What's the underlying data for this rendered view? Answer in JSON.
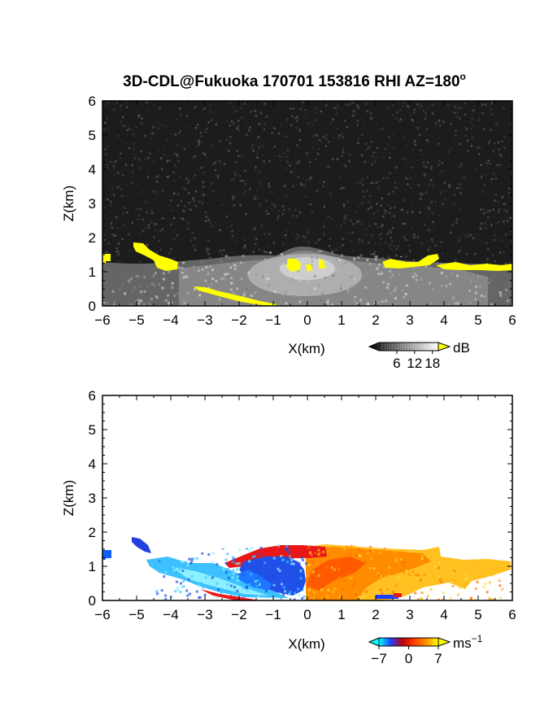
{
  "title": "3D-CDL@Fukuoka 170701 153816 RHI AZ=180",
  "title_degree": "o",
  "chart_data": [
    {
      "type": "heatmap",
      "variable": "reflectivity",
      "xlabel": "X(km)",
      "ylabel": "Z(km)",
      "xlim": [
        -6,
        6
      ],
      "ylim": [
        0,
        6
      ],
      "xticks": [
        "-6",
        "-5",
        "-4",
        "-3",
        "-2",
        "-1",
        "0",
        "1",
        "2",
        "3",
        "4",
        "5",
        "6"
      ],
      "yticks": [
        "0",
        "1",
        "2",
        "3",
        "4",
        "5",
        "6"
      ],
      "grid": false,
      "background_color": "#1c1c1c",
      "colorbar": {
        "unit": "dB",
        "ticks": [
          "6",
          "12",
          "18"
        ],
        "range": [
          0,
          20
        ],
        "colors": [
          "#000000",
          "#ffffff",
          "#ffff00"
        ]
      },
      "features": [
        {
          "kind": "boundary-layer echo (grey)",
          "x": [
            -4.5,
            6
          ],
          "z_top": [
            0.9,
            1.6
          ],
          "peak_db": 14
        },
        {
          "kind": "strong echo (yellow) left arc",
          "x": [
            -5.3,
            -3.9
          ],
          "z": [
            0.9,
            1.8
          ],
          "db": 18
        },
        {
          "kind": "strong echo (yellow) near surface",
          "x": [
            -3.3,
            -0.7
          ],
          "z": [
            0,
            0.6
          ],
          "db": 18
        },
        {
          "kind": "strong echo (yellow) center",
          "x": [
            -0.6,
            0.6
          ],
          "z": [
            1.1,
            1.4
          ],
          "db": 18
        },
        {
          "kind": "strong echo (yellow) right layer",
          "x": [
            2.2,
            6
          ],
          "z": [
            1.1,
            1.5
          ],
          "db": 18
        }
      ]
    },
    {
      "type": "heatmap",
      "variable": "doppler velocity",
      "xlabel": "X(km)",
      "ylabel": "Z(km)",
      "xlim": [
        -6,
        6
      ],
      "ylim": [
        0,
        6
      ],
      "xticks": [
        "-6",
        "-5",
        "-4",
        "-3",
        "-2",
        "-1",
        "0",
        "1",
        "2",
        "3",
        "4",
        "5",
        "6"
      ],
      "yticks": [
        "0",
        "1",
        "2",
        "3",
        "4",
        "5",
        "6"
      ],
      "grid": false,
      "background_color": "#ffffff",
      "colorbar": {
        "unit": "ms",
        "unit_exponent": "−1",
        "ticks": [
          "−7",
          "0",
          "7"
        ],
        "range": [
          -7,
          7
        ],
        "colors": [
          "#00ffff",
          "#2040ff",
          "#c00000",
          "#ff4000",
          "#ff9000",
          "#ffff00"
        ]
      },
      "features": [
        {
          "kind": "approaching flow (blue)",
          "x": [
            -6,
            0
          ],
          "z": [
            0,
            1.8
          ],
          "v": -4
        },
        {
          "kind": "receding flow (orange-yellow)",
          "x": [
            0,
            6
          ],
          "z": [
            0,
            1.6
          ],
          "v": 5
        }
      ]
    }
  ]
}
